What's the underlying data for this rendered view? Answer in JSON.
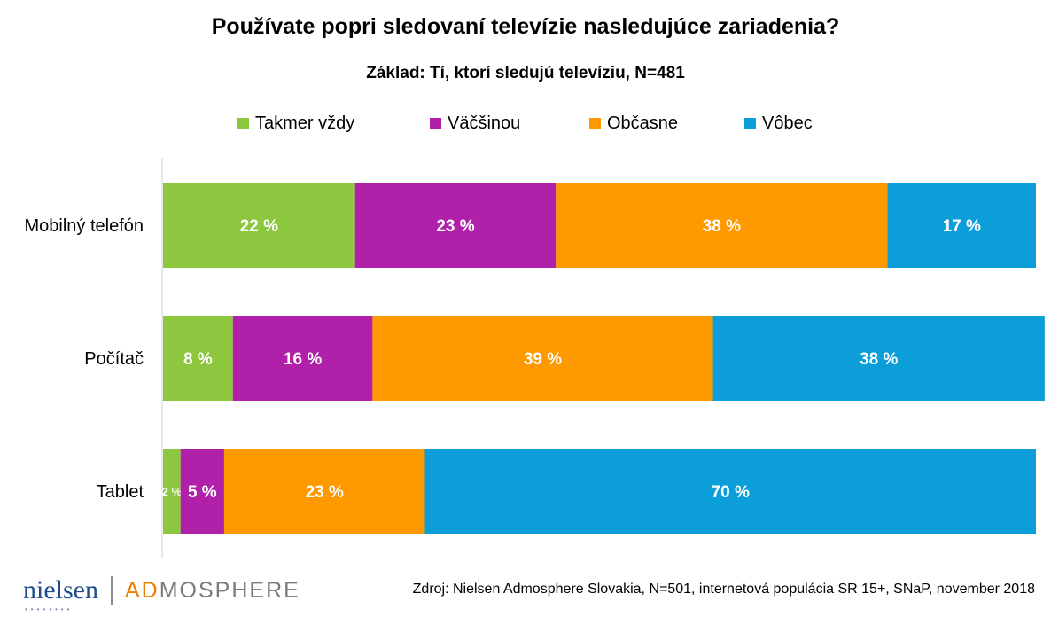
{
  "colors": {
    "takmer_vzdy": "#8dc63f",
    "vacsinou": "#b020a8",
    "obcasne": "#ff9900",
    "vobec": "#0b9ed8",
    "label_text": "#ffffff",
    "axis_line": "#d0d0d0",
    "logo_blue": "#1f4e8c",
    "logo_orange": "#f07d00",
    "logo_gray": "#7a7a7a"
  },
  "footer": {
    "source": "Zdroj: Nielsen Admosphere Slovakia, N=501, internetová populácia SR 15+, SNaP, november 2018",
    "logo_left": "nielsen",
    "logo_right_a": "AD",
    "logo_right_b": "MOSPHERE"
  },
  "chart_data": {
    "type": "bar",
    "orientation": "horizontal",
    "stacked": true,
    "title": "Používate popri sledovaní televízie nasledujúce zariadenia?",
    "subtitle": "Základ: Tí, ktorí sledujú televíziu, N=481",
    "categories": [
      "Mobilný telefón",
      "Počítač",
      "Tablet"
    ],
    "series": [
      {
        "name": "Takmer vždy",
        "color": "#8dc63f",
        "values": [
          22,
          8,
          2
        ],
        "labels": [
          "22 %",
          "8 %",
          "2 %"
        ]
      },
      {
        "name": "Väčšinou",
        "color": "#b020a8",
        "values": [
          23,
          16,
          5
        ],
        "labels": [
          "23 %",
          "16 %",
          "5 %"
        ]
      },
      {
        "name": "Občasne",
        "color": "#ff9900",
        "values": [
          38,
          39,
          23
        ],
        "labels": [
          "38 %",
          "39 %",
          "23 %"
        ]
      },
      {
        "name": "Vôbec",
        "color": "#0b9ed8",
        "values": [
          17,
          38,
          70
        ],
        "labels": [
          "17 %",
          "38 %",
          "70 %"
        ]
      }
    ],
    "xlim": [
      0,
      100
    ],
    "legend_position": "top",
    "grid": false
  }
}
